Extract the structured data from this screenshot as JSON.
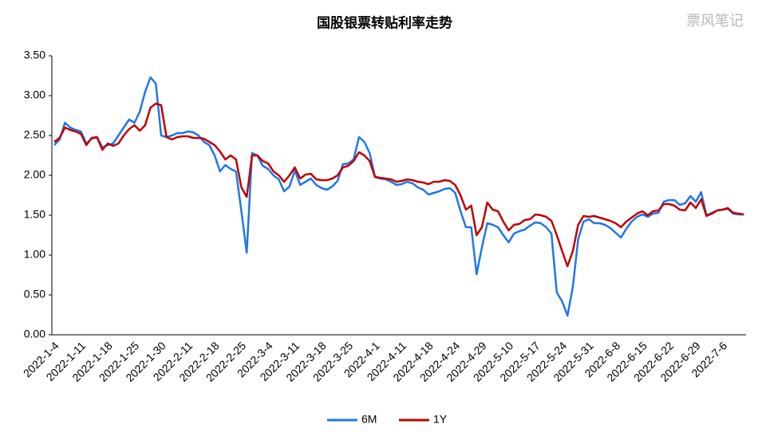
{
  "chart_data": {
    "type": "line",
    "title": "国股银票转贴利率走势",
    "watermark": "票风笔记",
    "categories": [
      "2022-1-4",
      null,
      null,
      null,
      null,
      "2022-1-11",
      null,
      null,
      null,
      null,
      "2022-1-18",
      null,
      null,
      null,
      null,
      "2022-1-25",
      null,
      null,
      null,
      null,
      "2022-1-30",
      null,
      null,
      null,
      null,
      "2022-2-11",
      null,
      null,
      null,
      null,
      "2022-2-18",
      null,
      null,
      null,
      null,
      "2022-2-25",
      null,
      null,
      null,
      null,
      "2022-3-4",
      null,
      null,
      null,
      null,
      "2022-3-11",
      null,
      null,
      null,
      null,
      "2022-3-18",
      null,
      null,
      null,
      null,
      "2022-3-25",
      null,
      null,
      null,
      null,
      "2022-4-1",
      null,
      null,
      null,
      null,
      "2022-4-11",
      null,
      null,
      null,
      null,
      "2022-4-18",
      null,
      null,
      null,
      null,
      "2022-4-24",
      null,
      null,
      null,
      null,
      "2022-4-29",
      null,
      null,
      null,
      null,
      "2022-5-10",
      null,
      null,
      null,
      null,
      "2022-5-17",
      null,
      null,
      null,
      null,
      "2022-5-24",
      null,
      null,
      null,
      null,
      "2022-5-31",
      null,
      null,
      null,
      null,
      "2022-6-8",
      null,
      null,
      null,
      null,
      "2022-6-15",
      null,
      null,
      null,
      null,
      "2022-6-22",
      null,
      null,
      null,
      null,
      "2022-6-29",
      null,
      null,
      null,
      null,
      "2022-7-6",
      null,
      null,
      null,
      null
    ],
    "series": [
      {
        "name": "6M",
        "color": "#1f77e8",
        "values": [
          2.38,
          2.45,
          2.66,
          2.6,
          2.57,
          2.55,
          2.4,
          2.46,
          2.48,
          2.35,
          2.38,
          2.4,
          2.5,
          2.6,
          2.7,
          2.66,
          2.8,
          3.05,
          3.23,
          3.15,
          2.5,
          2.48,
          2.5,
          2.53,
          2.53,
          2.55,
          2.54,
          2.5,
          2.42,
          2.38,
          2.25,
          2.05,
          2.13,
          2.08,
          2.05,
          1.55,
          1.03,
          2.28,
          2.25,
          2.12,
          2.08,
          2.0,
          1.95,
          1.8,
          1.86,
          2.06,
          1.88,
          1.92,
          1.96,
          1.88,
          1.84,
          1.82,
          1.86,
          1.93,
          2.14,
          2.15,
          2.2,
          2.48,
          2.42,
          2.28,
          1.98,
          1.96,
          1.95,
          1.92,
          1.88,
          1.89,
          1.92,
          1.9,
          1.85,
          1.82,
          1.76,
          1.78,
          1.8,
          1.83,
          1.84,
          1.78,
          1.55,
          1.35,
          1.35,
          0.76,
          1.1,
          1.4,
          1.38,
          1.35,
          1.25,
          1.16,
          1.27,
          1.3,
          1.32,
          1.37,
          1.41,
          1.4,
          1.35,
          1.27,
          0.53,
          0.42,
          0.24,
          0.6,
          1.2,
          1.42,
          1.45,
          1.4,
          1.4,
          1.38,
          1.34,
          1.28,
          1.22,
          1.33,
          1.42,
          1.48,
          1.51,
          1.48,
          1.52,
          1.53,
          1.67,
          1.69,
          1.69,
          1.63,
          1.65,
          1.74,
          1.67,
          1.79,
          1.5,
          1.53,
          1.56,
          1.57,
          1.58,
          1.52,
          1.51,
          1.51
        ]
      },
      {
        "name": "1Y",
        "color": "#c00000",
        "values": [
          2.42,
          2.47,
          2.6,
          2.57,
          2.55,
          2.52,
          2.38,
          2.47,
          2.48,
          2.32,
          2.4,
          2.37,
          2.4,
          2.5,
          2.58,
          2.63,
          2.56,
          2.63,
          2.85,
          2.9,
          2.88,
          2.48,
          2.45,
          2.48,
          2.49,
          2.49,
          2.47,
          2.47,
          2.46,
          2.42,
          2.38,
          2.3,
          2.2,
          2.25,
          2.2,
          1.85,
          1.73,
          2.25,
          2.25,
          2.18,
          2.15,
          2.05,
          2.0,
          1.92,
          2.0,
          2.1,
          1.96,
          2.01,
          2.02,
          1.95,
          1.94,
          1.94,
          1.96,
          2.0,
          2.1,
          2.12,
          2.18,
          2.29,
          2.25,
          2.18,
          1.98,
          1.97,
          1.96,
          1.95,
          1.92,
          1.93,
          1.95,
          1.94,
          1.92,
          1.91,
          1.89,
          1.92,
          1.92,
          1.94,
          1.93,
          1.88,
          1.75,
          1.57,
          1.62,
          1.25,
          1.35,
          1.66,
          1.57,
          1.55,
          1.42,
          1.31,
          1.38,
          1.39,
          1.44,
          1.45,
          1.51,
          1.5,
          1.48,
          1.43,
          1.25,
          1.05,
          0.86,
          1.05,
          1.38,
          1.49,
          1.48,
          1.49,
          1.47,
          1.45,
          1.43,
          1.4,
          1.35,
          1.42,
          1.47,
          1.52,
          1.55,
          1.5,
          1.55,
          1.56,
          1.64,
          1.64,
          1.62,
          1.57,
          1.56,
          1.66,
          1.59,
          1.7,
          1.49,
          1.52,
          1.56,
          1.57,
          1.59,
          1.53,
          1.52,
          1.51
        ]
      }
    ],
    "ylim": [
      0,
      3.5
    ],
    "yticks": [
      {
        "value": 0,
        "label": "0.00"
      },
      {
        "value": 0.5,
        "label": "0.50"
      },
      {
        "value": 1,
        "label": "1.00"
      },
      {
        "value": 1.5,
        "label": "1.50"
      },
      {
        "value": 2,
        "label": "2.00"
      },
      {
        "value": 2.5,
        "label": "2.50"
      },
      {
        "value": 3,
        "label": "3.00"
      },
      {
        "value": 3.5,
        "label": "3.50"
      }
    ],
    "grid": false,
    "legend": "bottom"
  }
}
